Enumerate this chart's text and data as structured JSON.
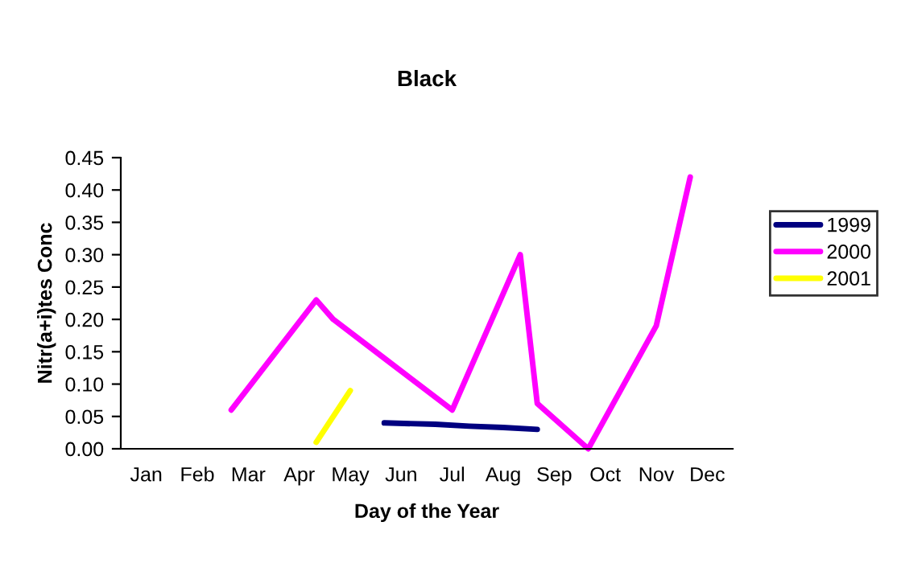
{
  "chart_data": {
    "type": "line",
    "title": "Black",
    "xlabel": "Day of the Year",
    "ylabel": "Nitr(a+i)tes Conc",
    "categories": [
      null,
      "Jan",
      null,
      null,
      "Feb",
      null,
      null,
      "Mar",
      null,
      null,
      "Apr",
      null,
      null,
      "May",
      null,
      null,
      "Jun",
      null,
      null,
      "Jul",
      null,
      null,
      "Aug",
      null,
      null,
      "Sep",
      null,
      null,
      "Oct",
      null,
      null,
      "Nov",
      null,
      null,
      "Dec",
      null
    ],
    "ylim": [
      0,
      0.45
    ],
    "yticks": [
      {
        "value": 0,
        "label": "0.00"
      },
      {
        "value": 0.05,
        "label": "0.05"
      },
      {
        "value": 0.1,
        "label": "0.10"
      },
      {
        "value": 0.15,
        "label": "0.15"
      },
      {
        "value": 0.2,
        "label": "0.20"
      },
      {
        "value": 0.25,
        "label": "0.25"
      },
      {
        "value": 0.3,
        "label": "0.30"
      },
      {
        "value": 0.35,
        "label": "0.35"
      },
      {
        "value": 0.4,
        "label": "0.40"
      },
      {
        "value": 0.45,
        "label": "0.45"
      }
    ],
    "legend": "right",
    "grid": false,
    "marker": "none",
    "series": [
      {
        "name": "1999",
        "color": "#000080",
        "values": [
          null,
          null,
          null,
          null,
          null,
          null,
          null,
          null,
          null,
          null,
          null,
          null,
          null,
          null,
          null,
          0.04,
          null,
          null,
          0.038,
          null,
          0.035,
          null,
          0.033,
          null,
          0.03,
          null,
          null,
          null,
          null,
          null,
          null,
          null,
          null,
          null,
          null,
          null
        ]
      },
      {
        "name": "2000",
        "color": "#ff00ff",
        "values": [
          null,
          null,
          null,
          null,
          null,
          null,
          0.06,
          null,
          null,
          null,
          null,
          0.23,
          0.2,
          null,
          null,
          0.14,
          null,
          null,
          null,
          0.06,
          null,
          null,
          null,
          0.3,
          0.07,
          null,
          null,
          0.0,
          null,
          null,
          null,
          0.19,
          null,
          0.42,
          null,
          null
        ]
      },
      {
        "name": "2001",
        "color": "#ffff00",
        "values": [
          null,
          null,
          null,
          null,
          null,
          null,
          null,
          null,
          null,
          null,
          null,
          0.01,
          null,
          0.09,
          null,
          null,
          null,
          null,
          null,
          null,
          null,
          null,
          null,
          null,
          null,
          null,
          null,
          null,
          null,
          null,
          null,
          null,
          null,
          null,
          null,
          null
        ]
      }
    ]
  }
}
